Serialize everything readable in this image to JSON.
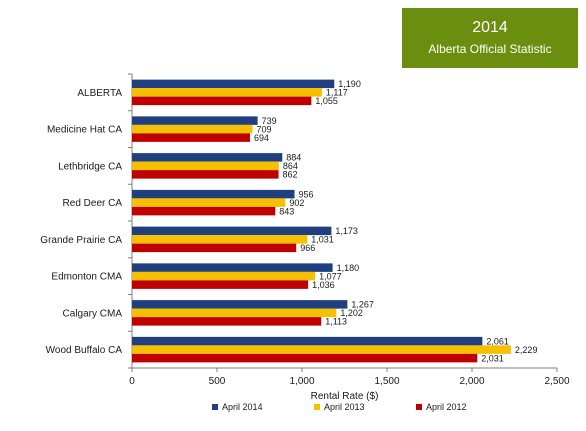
{
  "badge": {
    "year": "2014",
    "subtitle": "Alberta Official Statistic",
    "color": "#6b8e0e"
  },
  "chart_data": {
    "type": "bar",
    "orientation": "horizontal",
    "title": "",
    "xlabel": "Rental Rate ($)",
    "ylabel": "",
    "xlim": [
      0,
      2500
    ],
    "xticks": [
      0,
      500,
      1000,
      1500,
      2000,
      2500
    ],
    "xtick_labels": [
      "0",
      "500",
      "1,000",
      "1,500",
      "2,000",
      "2,500"
    ],
    "grid": false,
    "legend_position": "bottom",
    "categories": [
      "ALBERTA",
      "Medicine Hat CA",
      "Lethbridge CA",
      "Red Deer CA",
      "Grande Prairie CA",
      "Edmonton CMA",
      "Calgary CMA",
      "Wood Buffalo CA"
    ],
    "series": [
      {
        "name": "April 2014",
        "color": "#1f3f7f",
        "values": [
          1190,
          739,
          884,
          956,
          1173,
          1180,
          1267,
          2061
        ],
        "labels": [
          "1,190",
          "739",
          "884",
          "956",
          "1,173",
          "1,180",
          "1,267",
          "2,061"
        ]
      },
      {
        "name": "April 2013",
        "color": "#f5c000",
        "values": [
          1117,
          709,
          864,
          902,
          1031,
          1077,
          1202,
          2229
        ],
        "labels": [
          "1,117",
          "709",
          "864",
          "902",
          "1,031",
          "1,077",
          "1,202",
          "2,229"
        ]
      },
      {
        "name": "April 2012",
        "color": "#c00000",
        "values": [
          1055,
          694,
          862,
          843,
          966,
          1036,
          1113,
          2031
        ],
        "labels": [
          "1,055",
          "694",
          "862",
          "843",
          "966",
          "1,036",
          "1,113",
          "2,031"
        ]
      }
    ]
  }
}
